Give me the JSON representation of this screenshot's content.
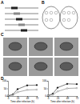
{
  "panels": [
    {
      "label": "A"
    },
    {
      "label": "B"
    },
    {
      "label": "C"
    },
    {
      "label": "D"
    }
  ],
  "chart_data": [
    {
      "type": "line",
      "x_label": "Time after infection (h)",
      "x": [
        0,
        12,
        24,
        48,
        72
      ],
      "xlim": [
        0,
        72
      ],
      "xticks": [
        0,
        24,
        48,
        72
      ],
      "ylim": [
        0,
        100
      ],
      "yticks": [
        0,
        50,
        100
      ],
      "series": [
        {
          "color": "#000000",
          "marker": "circle",
          "line_style": "solid",
          "values": [
            2,
            10,
            45,
            70,
            72
          ]
        },
        {
          "color": "#555555",
          "marker": "open-circle",
          "line_style": "solid",
          "values": [
            2,
            6,
            25,
            40,
            42
          ]
        }
      ]
    },
    {
      "type": "line",
      "x_label": "Time after infection (h)",
      "x": [
        0,
        12,
        24,
        48,
        72
      ],
      "xlim": [
        0,
        72
      ],
      "xticks": [
        0,
        24,
        48,
        72
      ],
      "ylim": [
        0,
        100
      ],
      "yticks": [
        0,
        50,
        100
      ],
      "series": [
        {
          "color": "#000000",
          "marker": "circle",
          "line_style": "solid",
          "values": [
            3,
            15,
            55,
            80,
            78
          ]
        },
        {
          "color": "#555555",
          "marker": "open-circle",
          "line_style": "solid",
          "values": [
            3,
            8,
            30,
            50,
            52
          ]
        }
      ]
    }
  ]
}
